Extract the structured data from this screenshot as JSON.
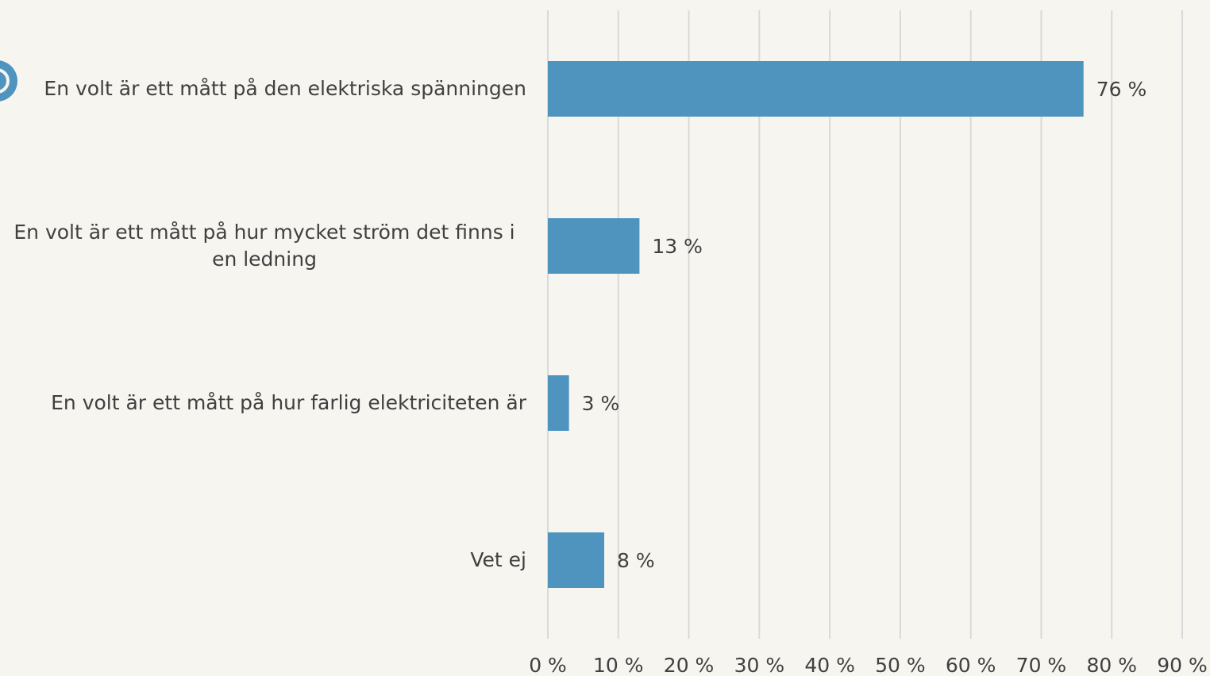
{
  "chart_data": {
    "type": "bar",
    "orientation": "horizontal",
    "categories": [
      "En volt är ett mått på den elektriska spänningen",
      "En volt är ett mått på hur mycket ström det finns i en ledning",
      "En volt är ett mått på hur farlig elektriciteten är",
      "Vet ej"
    ],
    "values": [
      76,
      13,
      3,
      8
    ],
    "value_labels": [
      "76 %",
      "13 %",
      "3 %",
      "8 %"
    ],
    "color": "#4f94bf",
    "xlim": [
      0,
      90
    ],
    "xticks": [
      {
        "value": 0,
        "label": "0 %"
      },
      {
        "value": 10,
        "label": "10 %"
      },
      {
        "value": 20,
        "label": "20 %"
      },
      {
        "value": 30,
        "label": "30 %"
      },
      {
        "value": 40,
        "label": "40 %"
      },
      {
        "value": 50,
        "label": "50 %"
      },
      {
        "value": 60,
        "label": "60 %"
      },
      {
        "value": 70,
        "label": "70 %"
      },
      {
        "value": 80,
        "label": "80 %"
      },
      {
        "value": 90,
        "label": "90 %"
      }
    ],
    "grid": true
  }
}
